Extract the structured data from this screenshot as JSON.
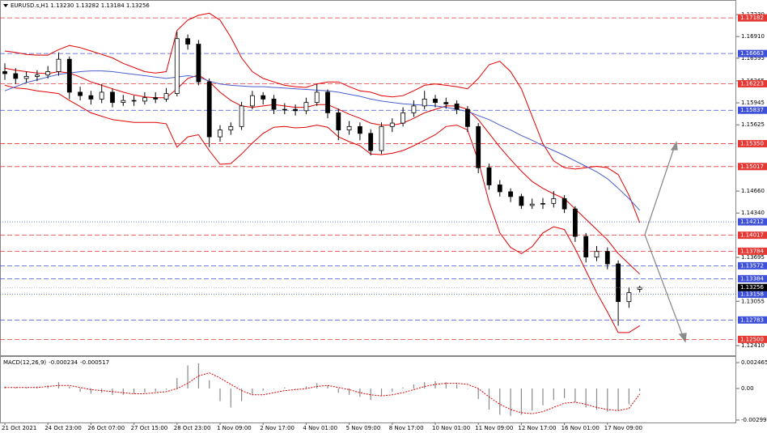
{
  "chart_data": [
    {
      "type": "candlestick",
      "title": "EURUSD.s,H1 1.13230 1.13282 1.13184 1.13256",
      "categories": [
        "21 Oct 2021",
        null,
        null,
        null,
        "24 Oct 23:00",
        null,
        null,
        null,
        "26 Oct 07:00",
        null,
        null,
        null,
        "27 Oct 15:00",
        null,
        null,
        null,
        "28 Oct 23:00",
        null,
        null,
        null,
        "1 Nov 09:00",
        null,
        null,
        null,
        "2 Nov 17:00",
        null,
        null,
        null,
        "4 Nov 01:00",
        null,
        null,
        null,
        "5 Nov 09:00",
        null,
        null,
        null,
        "8 Nov 17:00",
        null,
        null,
        null,
        "10 Nov 01:00",
        null,
        null,
        null,
        "11 Nov 09:00",
        null,
        null,
        null,
        "12 Nov 17:00",
        null,
        null,
        null,
        "16 Nov 01:00",
        null,
        null,
        null,
        "17 Nov 09:00",
        null,
        null,
        null
      ],
      "open": [
        1.164,
        1.1637,
        1.163,
        1.1633,
        1.1635,
        1.164,
        1.1658,
        1.161,
        1.1605,
        1.16,
        1.161,
        1.1595,
        1.1598,
        1.1597,
        1.1602,
        1.16,
        1.1608,
        1.1688,
        1.168,
        1.1625,
        1.1545,
        1.1555,
        1.156,
        1.159,
        1.1605,
        1.16,
        1.1585,
        1.1585,
        1.1583,
        1.1595,
        1.161,
        1.158,
        1.1555,
        1.156,
        1.155,
        1.1525,
        1.156,
        1.1565,
        1.158,
        1.159,
        1.16,
        1.1595,
        1.1593,
        1.1585,
        1.156,
        1.15,
        1.1475,
        1.1465,
        1.1458,
        1.1445,
        1.1447,
        1.1448,
        1.1455,
        1.144,
        1.14,
        1.137,
        1.1378,
        1.136,
        1.1305,
        1.1323
      ],
      "high": [
        1.1652,
        1.1645,
        1.164,
        1.1642,
        1.1648,
        1.1668,
        1.1662,
        1.1618,
        1.1612,
        1.1622,
        1.1615,
        1.1606,
        1.1605,
        1.161,
        1.161,
        1.1616,
        1.1698,
        1.1694,
        1.1686,
        1.163,
        1.1562,
        1.1566,
        1.1596,
        1.1612,
        1.161,
        1.1606,
        1.1594,
        1.1592,
        1.1602,
        1.1622,
        1.1614,
        1.1586,
        1.1568,
        1.1566,
        1.1556,
        1.1566,
        1.1572,
        1.1588,
        1.1598,
        1.1612,
        1.1606,
        1.1602,
        1.1598,
        1.159,
        1.1565,
        1.1506,
        1.1482,
        1.147,
        1.1462,
        1.1455,
        1.1456,
        1.1466,
        1.146,
        1.1444,
        1.1405,
        1.1386,
        1.1384,
        1.1365,
        1.1326,
        1.13282
      ],
      "low": [
        1.1628,
        1.1622,
        1.1624,
        1.1626,
        1.163,
        1.1634,
        1.16,
        1.1598,
        1.1592,
        1.1594,
        1.1588,
        1.159,
        1.159,
        1.1592,
        1.1594,
        1.1596,
        1.1604,
        1.1672,
        1.162,
        1.153,
        1.1538,
        1.1548,
        1.1555,
        1.1585,
        1.1592,
        1.1578,
        1.1578,
        1.1576,
        1.1578,
        1.159,
        1.1572,
        1.154,
        1.1548,
        1.154,
        1.1518,
        1.152,
        1.1552,
        1.156,
        1.1574,
        1.1585,
        1.1588,
        1.1586,
        1.1578,
        1.1552,
        1.1492,
        1.1468,
        1.1458,
        1.145,
        1.144,
        1.144,
        1.144,
        1.1442,
        1.1434,
        1.1392,
        1.1362,
        1.1364,
        1.1352,
        1.127,
        1.1296,
        1.13184
      ],
      "close": [
        1.1637,
        1.163,
        1.1633,
        1.1635,
        1.164,
        1.1658,
        1.161,
        1.1605,
        1.16,
        1.161,
        1.1595,
        1.1598,
        1.1597,
        1.1602,
        1.16,
        1.1608,
        1.1688,
        1.168,
        1.1625,
        1.1545,
        1.1555,
        1.156,
        1.159,
        1.1605,
        1.16,
        1.1585,
        1.1585,
        1.1583,
        1.1595,
        1.161,
        1.158,
        1.1555,
        1.156,
        1.155,
        1.1525,
        1.156,
        1.1565,
        1.158,
        1.159,
        1.16,
        1.1595,
        1.1593,
        1.1585,
        1.156,
        1.15,
        1.1475,
        1.1465,
        1.1458,
        1.1445,
        1.1447,
        1.1448,
        1.1455,
        1.144,
        1.14,
        1.137,
        1.1378,
        1.136,
        1.1305,
        1.1318,
        1.13256
      ],
      "overlays": [
        {
          "color": "#e00000",
          "values": [
            1.167,
            1.1668,
            1.1665,
            1.1664,
            1.1664,
            1.1672,
            1.1678,
            1.1675,
            1.167,
            1.1665,
            1.166,
            1.1652,
            1.1646,
            1.164,
            1.1638,
            1.164,
            1.17,
            1.1715,
            1.1722,
            1.1725,
            1.1715,
            1.169,
            1.166,
            1.164,
            1.163,
            1.1625,
            1.162,
            1.1618,
            1.1617,
            1.1622,
            1.1625,
            1.1625,
            1.1618,
            1.1612,
            1.161,
            1.1605,
            1.1603,
            1.1605,
            1.1612,
            1.162,
            1.1622,
            1.162,
            1.1618,
            1.1615,
            1.163,
            1.165,
            1.1655,
            1.164,
            1.1615,
            1.1575,
            1.1535,
            1.151,
            1.15,
            1.1498,
            1.15,
            1.1502,
            1.15,
            1.149,
            1.146,
            1.142
          ]
        },
        {
          "color": "#e00000",
          "values": [
            1.1645,
            1.1642,
            1.164,
            1.1638,
            1.1637,
            1.164,
            1.1638,
            1.1632,
            1.1625,
            1.162,
            1.1615,
            1.161,
            1.1606,
            1.1603,
            1.1602,
            1.1602,
            1.1615,
            1.163,
            1.1635,
            1.1625,
            1.161,
            1.1598,
            1.159,
            1.1588,
            1.159,
            1.1592,
            1.159,
            1.1588,
            1.1588,
            1.1592,
            1.1592,
            1.1585,
            1.1578,
            1.1572,
            1.1565,
            1.1562,
            1.1562,
            1.1565,
            1.1572,
            1.158,
            1.1585,
            1.159,
            1.159,
            1.1585,
            1.157,
            1.155,
            1.153,
            1.1512,
            1.1495,
            1.148,
            1.147,
            1.1462,
            1.1455,
            1.144,
            1.1425,
            1.141,
            1.1395,
            1.1375,
            1.136,
            1.1345
          ]
        },
        {
          "color": "#e00000",
          "values": [
            1.162,
            1.1616,
            1.1615,
            1.1612,
            1.161,
            1.1608,
            1.1598,
            1.1589,
            1.158,
            1.1575,
            1.157,
            1.1568,
            1.1566,
            1.1566,
            1.1566,
            1.1564,
            1.153,
            1.1545,
            1.1548,
            1.1525,
            1.1505,
            1.1506,
            1.152,
            1.1536,
            1.155,
            1.1559,
            1.156,
            1.1558,
            1.1559,
            1.1562,
            1.1559,
            1.1545,
            1.1538,
            1.1532,
            1.152,
            1.1519,
            1.1521,
            1.1525,
            1.1532,
            1.154,
            1.1548,
            1.156,
            1.1562,
            1.1555,
            1.151,
            1.145,
            1.1405,
            1.1384,
            1.1375,
            1.1385,
            1.1405,
            1.1414,
            1.141,
            1.1382,
            1.135,
            1.1318,
            1.129,
            1.126,
            1.126,
            1.127
          ]
        },
        {
          "color": "#4a5fd0",
          "values": [
            1.1612,
            1.1618,
            1.1624,
            1.1628,
            1.1632,
            1.1636,
            1.1638,
            1.164,
            1.1641,
            1.1641,
            1.164,
            1.1638,
            1.1636,
            1.1634,
            1.1632,
            1.163,
            1.1632,
            1.1634,
            1.1632,
            1.1626,
            1.1622,
            1.162,
            1.1619,
            1.1618,
            1.1618,
            1.1617,
            1.1616,
            1.1615,
            1.1614,
            1.1613,
            1.1612,
            1.161,
            1.1607,
            1.1604,
            1.16,
            1.1597,
            1.1595,
            1.1593,
            1.1592,
            1.1591,
            1.159,
            1.1588,
            1.1585,
            1.1582,
            1.1576,
            1.157,
            1.1562,
            1.1555,
            1.1547,
            1.154,
            1.1532,
            1.1525,
            1.1518,
            1.151,
            1.1502,
            1.1494,
            1.1484,
            1.147,
            1.1455,
            1.1438
          ]
        }
      ],
      "ylim": [
        1.12292,
        1.17419
      ],
      "yticks": [
        {
          "value": 1.1723,
          "label": "1.17230"
        },
        {
          "value": 1.1691,
          "label": "1.16910"
        },
        1.16595,
        1.16265,
        1.15945,
        1.15625,
        {
          "value": 1.1466,
          "label": "1.14660"
        },
        {
          "value": 1.1434,
          "label": "1.14340"
        },
        1.13695,
        1.13055,
        {
          "value": 1.1241,
          "label": "1.12410"
        }
      ],
      "levels": [
        {
          "value": 1.17182,
          "color": "#e53935",
          "style": "dashed"
        },
        {
          "value": 1.16663,
          "color": "#3f51d8",
          "style": "dashed"
        },
        {
          "value": 1.16223,
          "color": "#e53935",
          "style": "dashed"
        },
        {
          "value": 1.15837,
          "color": "#3f51d8",
          "style": "dashed"
        },
        {
          "value": 1.1535,
          "label": "1.15350",
          "color": "#e53935",
          "style": "dashed"
        },
        {
          "value": 1.15017,
          "color": "#e53935",
          "style": "dashed"
        },
        {
          "value": 1.14212,
          "color": "#3f51d8",
          "style": "dotted"
        },
        {
          "value": 1.14017,
          "color": "#e53935",
          "style": "dashed"
        },
        {
          "value": 1.13784,
          "color": "#e53935",
          "style": "dashed"
        },
        {
          "value": 1.13572,
          "color": "#3f51d8",
          "style": "dashed"
        },
        {
          "value": 1.13384,
          "color": "#3f51d8",
          "style": "dashed"
        },
        {
          "value": 1.13158,
          "color": "#3f51d8",
          "style": "dotted"
        },
        {
          "value": 1.12783,
          "color": "#3f51d8",
          "style": "dashed"
        },
        {
          "value": 1.125,
          "label": "1.12500",
          "color": "#e53935",
          "style": "dashed"
        }
      ],
      "current_price": {
        "value": 1.13256,
        "color": "#000000"
      }
    },
    {
      "type": "macd",
      "title": "MACD(12,26,9)",
      "values": [
        0.0002,
        0.0001,
        0.0001,
        0.0002,
        0.0003,
        0.0006,
        0.0002,
        -0.0003,
        -0.0005,
        -0.0004,
        -0.0006,
        -0.0006,
        -0.0005,
        -0.0004,
        -0.0003,
        -0.0001,
        0.001,
        0.0022,
        0.0024,
        0.0008,
        -0.0012,
        -0.0018,
        -0.0012,
        -0.0006,
        -0.0002,
        0.0,
        0.0001,
        0.0,
        0.0002,
        0.0005,
        0.0003,
        -0.0004,
        -0.0006,
        -0.0008,
        -0.0011,
        -0.0007,
        -0.0003,
        0.0001,
        0.0004,
        0.0006,
        0.0007,
        0.0006,
        0.0004,
        0.0,
        -0.001,
        -0.002,
        -0.0025,
        -0.0026,
        -0.0025,
        -0.0021,
        -0.0016,
        -0.0011,
        -0.0009,
        -0.0013,
        -0.0018,
        -0.002,
        -0.0022,
        -0.0021,
        -0.0015,
        -0.000234
      ],
      "color": "#8a8a8a",
      "signal": {
        "color": "#e00000",
        "values": [
          0.0001,
          0.0001,
          0.0001,
          0.0001,
          0.0002,
          0.0003,
          0.0003,
          0.0001,
          -0.0001,
          -0.0002,
          -0.0003,
          -0.0004,
          -0.0005,
          -0.0005,
          -0.0004,
          -0.0003,
          0.0,
          0.0005,
          0.0012,
          0.0015,
          0.001,
          0.0004,
          -0.0002,
          -0.0006,
          -0.0006,
          -0.0004,
          -0.0002,
          -0.0001,
          0.0,
          0.0002,
          0.0003,
          0.0001,
          -0.0001,
          -0.0004,
          -0.0006,
          -0.0007,
          -0.0006,
          -0.0004,
          -0.0001,
          0.0002,
          0.0004,
          0.0005,
          0.0005,
          0.0004,
          0.0,
          -0.0008,
          -0.0015,
          -0.002,
          -0.0023,
          -0.0024,
          -0.0022,
          -0.0018,
          -0.0014,
          -0.0013,
          -0.0015,
          -0.0018,
          -0.002,
          -0.0021,
          -0.0019,
          -0.000517
        ]
      },
      "ylim": [
        -0.00323,
        0.00293
      ],
      "yticks": [
        0.002465,
        {
          "value": 0,
          "label": "0.00"
        },
        -0.002997
      ]
    }
  ]
}
